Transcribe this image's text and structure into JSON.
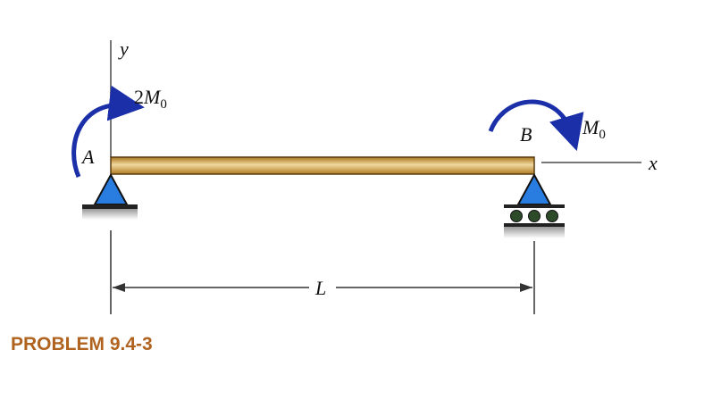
{
  "labels": {
    "y_axis": "y",
    "x_axis": "x",
    "point_a": "A",
    "point_b": "B",
    "moment_a": {
      "coef": "2",
      "symbol": "M",
      "sub": "0"
    },
    "moment_b": {
      "symbol": "M",
      "sub": "0"
    },
    "span": "L"
  },
  "caption": "PROBLEM 9.4-3",
  "colors": {
    "beam": "#c8922e",
    "moment_arrow": "#1a2fa8",
    "support": "#2a7de0",
    "caption": "#b0631f"
  }
}
